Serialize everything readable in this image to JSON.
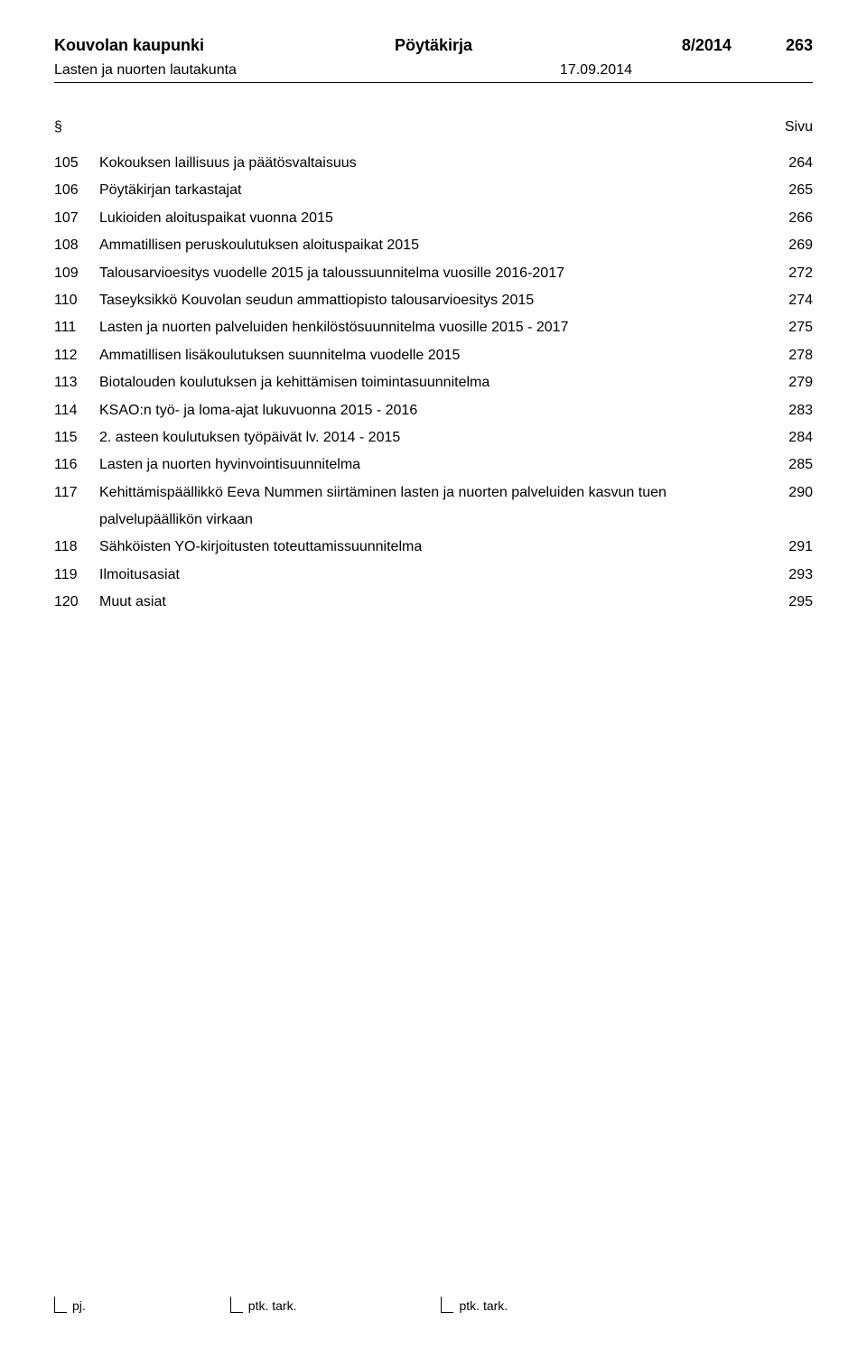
{
  "header": {
    "org": "Kouvolan kaupunki",
    "doc_type": "Pöytäkirja",
    "doc_number": "8/2014",
    "page_number": "263"
  },
  "sub_header": {
    "board": "Lasten ja nuorten lautakunta",
    "date": "17.09.2014"
  },
  "column_headers": {
    "symbol": "§",
    "page": "Sivu"
  },
  "toc": [
    {
      "num": "105",
      "desc": "Kokouksen laillisuus ja päätösvaltaisuus",
      "page": "264"
    },
    {
      "num": "106",
      "desc": "Pöytäkirjan tarkastajat",
      "page": "265"
    },
    {
      "num": "107",
      "desc": "Lukioiden aloituspaikat vuonna 2015",
      "page": "266"
    },
    {
      "num": "108",
      "desc": "Ammatillisen peruskoulutuksen aloituspaikat 2015",
      "page": "269"
    },
    {
      "num": "109",
      "desc": "Talousarvioesitys vuodelle 2015 ja taloussuunnitelma vuosille 2016-2017",
      "page": "272"
    },
    {
      "num": "110",
      "desc": "Taseyksikkö Kouvolan seudun ammattiopisto talousarvioesitys 2015",
      "page": "274"
    },
    {
      "num": "111",
      "desc": "Lasten ja nuorten palveluiden henkilöstösuunnitelma vuosille 2015 - 2017",
      "page": "275"
    },
    {
      "num": "112",
      "desc": "Ammatillisen lisäkoulutuksen suunnitelma vuodelle 2015",
      "page": "278"
    },
    {
      "num": "113",
      "desc": "Biotalouden koulutuksen ja kehittämisen toimintasuunnitelma",
      "page": "279"
    },
    {
      "num": "114",
      "desc": "KSAO:n työ- ja loma-ajat lukuvuonna 2015 - 2016",
      "page": "283"
    },
    {
      "num": "115",
      "desc": "2. asteen koulutuksen työpäivät lv. 2014 - 2015",
      "page": "284"
    },
    {
      "num": "116",
      "desc": "Lasten ja nuorten hyvinvointisuunnitelma",
      "page": "285"
    },
    {
      "num": "117",
      "desc": "Kehittämispäällikkö Eeva Nummen siirtäminen lasten ja nuorten palveluiden kasvun tuen palvelupäällikön virkaan",
      "page": "290"
    },
    {
      "num": "118",
      "desc": "Sähköisten YO-kirjoitusten toteuttamissuunnitelma",
      "page": "291"
    },
    {
      "num": "119",
      "desc": "Ilmoitusasiat",
      "page": "293"
    },
    {
      "num": "120",
      "desc": "Muut asiat",
      "page": "295"
    }
  ],
  "footer": {
    "label1": "pj.",
    "label2": "ptk. tark.",
    "label3": "ptk. tark."
  }
}
